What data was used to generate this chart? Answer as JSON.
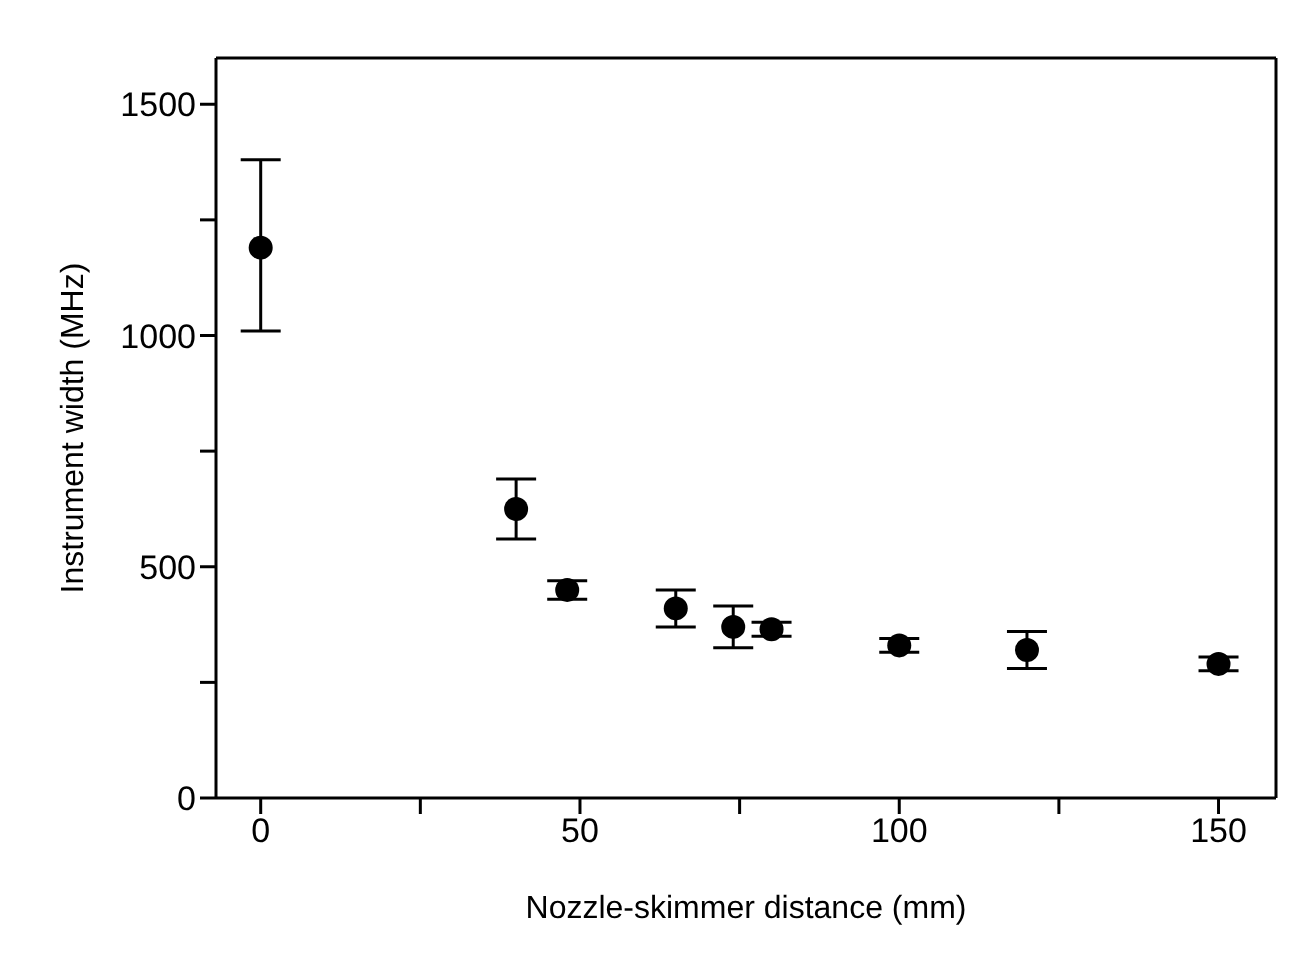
{
  "chart_data": {
    "type": "scatter",
    "xlabel": "Nozzle-skimmer distance (mm)",
    "ylabel": "Instrument width (MHz)",
    "x": [
      0,
      40,
      48,
      65,
      74,
      80,
      100,
      120,
      150
    ],
    "values": [
      1190,
      625,
      450,
      410,
      370,
      365,
      330,
      320,
      290
    ],
    "errors": [
      [
        1010,
        1380
      ],
      [
        560,
        690
      ],
      [
        430,
        470
      ],
      [
        370,
        450
      ],
      [
        325,
        415
      ],
      [
        350,
        380
      ],
      [
        315,
        345
      ],
      [
        280,
        360
      ],
      [
        275,
        305
      ]
    ],
    "color": "#000000",
    "marker": "circle",
    "xlim": [
      -7,
      159
    ],
    "xticks": [
      0,
      {
        "value": 25,
        "label": null
      },
      50,
      {
        "value": 75,
        "label": null
      },
      100,
      {
        "value": 125,
        "label": null
      },
      150
    ],
    "ylim": [
      0,
      1600
    ],
    "yticks": [
      0,
      {
        "value": 250,
        "label": null
      },
      500,
      {
        "value": 750,
        "label": null
      },
      1000,
      {
        "value": 1250,
        "label": null
      },
      1500
    ]
  }
}
